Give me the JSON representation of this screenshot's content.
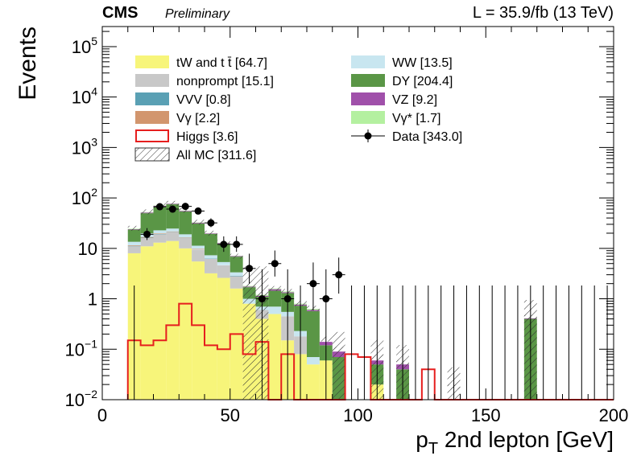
{
  "header": {
    "experiment": "CMS",
    "status": "Preliminary",
    "lumi": "L = 35.9/fb (13 TeV)"
  },
  "colors": {
    "tW": "#f7f57a",
    "nonprompt": "#c8c8c8",
    "VVV": "#5aa0b4",
    "Vg": "#d2966e",
    "WW": "#c8e6f0",
    "DY": "#5a9646",
    "VZ": "#a050aa",
    "Vgstar": "#b4f0a0",
    "Higgs": "#e61e1e",
    "Data": "#000000"
  },
  "chart_data": {
    "type": "bar",
    "stacked": true,
    "title": "",
    "xlabel": "p_T 2nd lepton [GeV]",
    "ylabel": "Events",
    "xlim": [
      0,
      200
    ],
    "ylim": [
      0.01,
      250000
    ],
    "yscale": "log",
    "bin_width": 5,
    "x_ticks": [
      "0",
      "50",
      "100",
      "150",
      "200"
    ],
    "y_ticks": [
      {
        "value": 0.01,
        "base": "10",
        "exp": "−2"
      },
      {
        "value": 0.1,
        "base": "10",
        "exp": "−1"
      },
      {
        "value": 1,
        "base": "1",
        "exp": ""
      },
      {
        "value": 10,
        "base": "10",
        "exp": ""
      },
      {
        "value": 100,
        "base": "10",
        "exp": "2"
      },
      {
        "value": 1000,
        "base": "10",
        "exp": "3"
      },
      {
        "value": 10000,
        "base": "10",
        "exp": "4"
      },
      {
        "value": 100000,
        "base": "10",
        "exp": "5"
      }
    ],
    "legend_placement": "top",
    "legend": [
      {
        "key": "tW",
        "text": "tW and t t̄ [64.7]",
        "style": "fill"
      },
      {
        "key": "WW",
        "text": "WW [13.5]",
        "style": "fill"
      },
      {
        "key": "nonprompt",
        "text": "nonprompt [15.1]",
        "style": "fill"
      },
      {
        "key": "DY",
        "text": "DY [204.4]",
        "style": "fill"
      },
      {
        "key": "VVV",
        "text": "VVV [0.8]",
        "style": "fill"
      },
      {
        "key": "VZ",
        "text": "VZ [9.2]",
        "style": "fill"
      },
      {
        "key": "Vg",
        "text": "Vγ [2.2]",
        "style": "fill"
      },
      {
        "key": "Vgstar",
        "text": "Vγ* [1.7]",
        "style": "fill"
      },
      {
        "key": "Higgs",
        "text": "Higgs [3.6]",
        "style": "line"
      },
      {
        "key": "Data",
        "text": "Data [343.0]",
        "style": "marker"
      },
      {
        "key": "AllMC",
        "text": "All MC [311.6]",
        "style": "hatch"
      }
    ],
    "bins_low_edge": [
      10,
      15,
      20,
      25,
      30,
      35,
      40,
      45,
      50,
      55,
      60,
      65,
      70,
      75,
      80,
      85,
      90,
      95,
      100,
      105,
      110,
      115,
      120,
      125,
      130,
      135,
      140,
      145,
      150,
      155,
      160,
      165,
      170,
      175,
      180,
      185,
      190,
      195
    ],
    "series": [
      {
        "key": "tW",
        "values": [
          8,
          11,
          13,
          14,
          10,
          5.5,
          3.2,
          2.6,
          1.6,
          0.8,
          0.4,
          0.5,
          0.15,
          0.08,
          0.05,
          0.06,
          0,
          0,
          0,
          0.02,
          0,
          0,
          0,
          0,
          0,
          0,
          0,
          0,
          0,
          0,
          0,
          0,
          0,
          0,
          0,
          0,
          0,
          0
        ]
      },
      {
        "key": "nonprompt",
        "values": [
          3,
          5,
          6,
          7,
          6,
          4,
          3,
          2,
          1.2,
          0,
          0.2,
          0,
          0.3,
          0.1,
          0,
          0,
          0,
          0,
          0,
          0,
          0,
          0,
          0,
          0,
          0,
          0,
          0,
          0,
          0,
          0,
          0,
          0,
          0,
          0,
          0,
          0,
          0,
          0
        ]
      },
      {
        "key": "VVV",
        "values": [
          0.2,
          0.3,
          0.3,
          0.3,
          0.2,
          0.1,
          0.1,
          0.05,
          0.05,
          0,
          0,
          0,
          0,
          0,
          0,
          0,
          0,
          0,
          0,
          0,
          0,
          0,
          0,
          0,
          0,
          0,
          0,
          0,
          0,
          0,
          0,
          0,
          0,
          0,
          0,
          0,
          0,
          0
        ]
      },
      {
        "key": "Vg",
        "values": [
          0.3,
          0.5,
          0.5,
          0.4,
          0.3,
          0.2,
          0,
          0,
          0,
          0,
          0,
          0,
          0,
          0,
          0,
          0,
          0,
          0,
          0,
          0,
          0,
          0,
          0,
          0,
          0,
          0,
          0,
          0,
          0,
          0,
          0,
          0,
          0,
          0,
          0,
          0,
          0,
          0
        ]
      },
      {
        "key": "WW",
        "values": [
          2,
          3,
          3,
          3,
          2.5,
          1.5,
          1,
          0.7,
          0.5,
          0.2,
          0.1,
          0.2,
          0.1,
          0.05,
          0.02,
          0,
          0.01,
          0,
          0,
          0,
          0,
          0,
          0,
          0,
          0,
          0,
          0,
          0,
          0,
          0,
          0,
          0,
          0,
          0,
          0,
          0,
          0,
          0
        ]
      },
      {
        "key": "DY",
        "values": [
          10,
          30,
          45,
          50,
          35,
          20,
          12,
          7,
          3.5,
          0.7,
          0.4,
          0.75,
          0.75,
          0.5,
          0.5,
          0.06,
          0.06,
          0,
          0,
          0.03,
          0,
          0.04,
          0,
          0,
          0,
          0,
          0,
          0,
          0,
          0,
          0,
          0.4,
          0,
          0,
          0,
          0,
          0,
          0
        ]
      },
      {
        "key": "VZ",
        "values": [
          0.5,
          1.5,
          2,
          2,
          1.5,
          1,
          0.5,
          0.4,
          0.2,
          0.05,
          0.05,
          0.1,
          0.05,
          0.04,
          0.03,
          0.02,
          0.02,
          0,
          0,
          0.01,
          0,
          0.01,
          0,
          0,
          0,
          0.008,
          0,
          0,
          0,
          0,
          0,
          0.01,
          0,
          0,
          0,
          0,
          0,
          0
        ]
      },
      {
        "key": "Vgstar",
        "values": [
          0.5,
          1,
          1,
          1,
          0.8,
          0.5,
          0.3,
          0.2,
          0.1,
          0.05,
          0.05,
          0.05,
          0.05,
          0.03,
          0.03,
          0,
          0,
          0,
          0,
          0,
          0,
          0,
          0,
          0,
          0,
          0,
          0,
          0,
          0,
          0,
          0,
          0,
          0,
          0,
          0,
          0,
          0,
          0
        ]
      }
    ],
    "allmc_total": [
      25,
      53,
      70,
      78,
      57,
      33,
      20,
      13,
      7,
      2,
      1.2,
      1.6,
      1.4,
      0.8,
      0.65,
      0.16,
      0.1,
      0,
      0,
      0.07,
      0,
      0.055,
      0,
      0,
      0,
      0.018,
      0,
      0,
      0,
      0,
      0,
      0.43,
      0,
      0,
      0,
      0,
      0,
      0
    ],
    "allmc_band": [
      {
        "lo": 55,
        "hi": 65,
        "frac": 0.6
      },
      {
        "lo": 90,
        "hi": 95,
        "frac": 0.35
      },
      {
        "lo": 105,
        "hi": 110,
        "frac": 0.5
      },
      {
        "lo": 115,
        "hi": 120,
        "frac": 0.5
      },
      {
        "lo": 135,
        "hi": 140,
        "frac": 0.55
      },
      {
        "lo": 165,
        "hi": 170,
        "frac": 0.5
      }
    ],
    "higgs": [
      0.15,
      0.12,
      0.15,
      0.3,
      0.8,
      0.3,
      0.12,
      0.1,
      0.2,
      0.08,
      0.14,
      0.01,
      0.08,
      0.01,
      0.01,
      0.01,
      0.01,
      0.08,
      0.07,
      0.01,
      0.01,
      0.01,
      0.01,
      0.04,
      0.01,
      0.01,
      0.01,
      0.01,
      0.01,
      0.01,
      0.01,
      0.01,
      0.01,
      0.01,
      0.01,
      0.01,
      0.01,
      0.01
    ],
    "data": {
      "x": [
        12.5,
        17.5,
        22.5,
        27.5,
        32.5,
        37.5,
        42.5,
        47.5,
        52.5,
        57.5,
        62.5,
        67.5,
        72.5,
        77.5,
        82.5,
        87.5,
        92.5,
        97.5,
        102.5,
        107.5,
        112.5,
        117.5,
        122.5,
        127.5,
        132.5,
        137.5,
        142.5,
        147.5,
        152.5,
        157.5,
        162.5,
        167.5,
        172.5,
        177.5,
        182.5,
        187.5,
        192.5,
        197.5
      ],
      "y": [
        0,
        19,
        67,
        60,
        68,
        55,
        32,
        12,
        12,
        4,
        1,
        5,
        1,
        0,
        2,
        1,
        3,
        0,
        0,
        0,
        0,
        0,
        0,
        0,
        0,
        0,
        0,
        0,
        0,
        0,
        0,
        0,
        0,
        0,
        0,
        0,
        0,
        0
      ]
    }
  }
}
